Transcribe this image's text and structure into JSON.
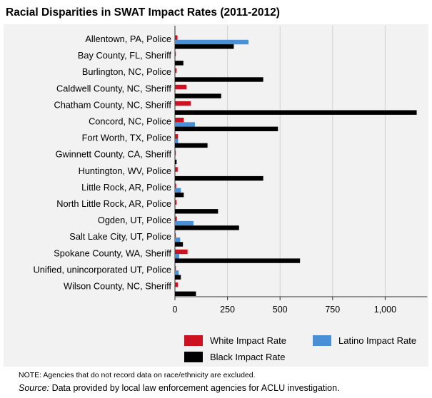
{
  "chart_data": {
    "type": "bar",
    "orientation": "horizontal",
    "title": "Racial Disparities in SWAT Impact Rates (2011-2012)",
    "categories": [
      "Allentown, PA, Police",
      "Bay County, FL, Sheriff",
      "Burlington, NC, Police",
      "Caldwell County, NC, Sheriff",
      "Chatham County, NC, Sheriff",
      "Concord, NC, Police",
      "Fort Worth, TX, Police",
      "Gwinnett County, CA, Sheriff",
      "Huntington, WV, Police",
      "Little Rock, AR, Police",
      "North Little Rock, AR, Police",
      "Ogden, UT, Police",
      "Salt Lake City, UT, Police",
      "Spokane County, WA, Sheriff",
      "Unified, unincorporated UT, Police",
      "Wilson County, NC, Sheriff"
    ],
    "series": [
      {
        "name": "White Impact Rate",
        "color": "#cc1120",
        "values": [
          12,
          3,
          8,
          55,
          75,
          42,
          14,
          2,
          13,
          6,
          8,
          9,
          4,
          60,
          4,
          14
        ]
      },
      {
        "name": "Latino Impact Rate",
        "color": "#4a90d6",
        "values": [
          350,
          0,
          0,
          0,
          0,
          95,
          15,
          0,
          0,
          28,
          0,
          88,
          25,
          20,
          18,
          0
        ]
      },
      {
        "name": "Black Impact Rate",
        "color": "#000000",
        "values": [
          280,
          40,
          420,
          220,
          1150,
          490,
          155,
          8,
          420,
          42,
          205,
          305,
          38,
          595,
          28,
          100
        ]
      }
    ],
    "xlim": [
      0,
      1200
    ],
    "xticks": [
      0,
      250,
      500,
      750,
      1000
    ],
    "xtick_labels": [
      "0",
      "250",
      "500",
      "750",
      "1,000"
    ],
    "grid": true,
    "legend_position": "bottom"
  },
  "footer": {
    "note": "NOTE: Agencies that do not record data on race/ethnicity are excluded.",
    "source_label": "Source:",
    "source_text": " Data provided by local law enforcement agencies for ACLU investigation."
  }
}
